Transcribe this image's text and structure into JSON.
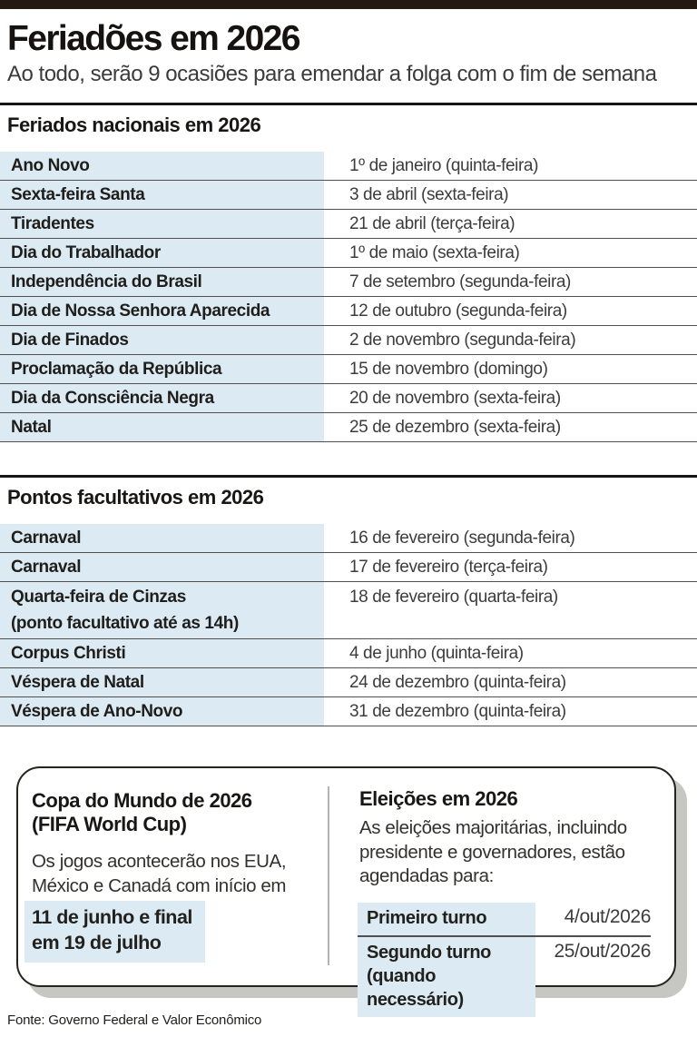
{
  "header": {
    "title": "Feriadões em 2026",
    "subtitle": "Ao todo, serão 9 ocasiões para emendar a folga com o fim de semana"
  },
  "national": {
    "heading": "Feriados nacionais em 2026",
    "rows": [
      {
        "name": "Ano Novo",
        "date": "1º de janeiro (quinta-feira)"
      },
      {
        "name": "Sexta-feira Santa",
        "date": "3 de abril (sexta-feira)"
      },
      {
        "name": "Tiradentes",
        "date": "21 de abril (terça-feira)"
      },
      {
        "name": "Dia do Trabalhador",
        "date": "1º de maio (sexta-feira)"
      },
      {
        "name": "Independência do Brasil",
        "date": "7 de setembro (segunda-feira)"
      },
      {
        "name": "Dia de Nossa Senhora Aparecida",
        "date": "12 de outubro (segunda-feira)"
      },
      {
        "name": "Dia de Finados",
        "date": "2 de novembro (segunda-feira)"
      },
      {
        "name": "Proclamação da República",
        "date": "15 de novembro (domingo)"
      },
      {
        "name": "Dia da Consciência Negra",
        "date": "20 de novembro (sexta-feira)"
      },
      {
        "name": "Natal",
        "date": "25 de dezembro (sexta-feira)"
      }
    ]
  },
  "optional": {
    "heading": "Pontos facultativos em 2026",
    "rows": [
      {
        "name": "Carnaval",
        "note": "",
        "date": "16 de fevereiro (segunda-feira)"
      },
      {
        "name": "Carnaval",
        "note": "",
        "date": "17 de fevereiro (terça-feira)"
      },
      {
        "name": "Quarta-feira de Cinzas",
        "note": "(ponto facultativo até as 14h)",
        "date": "18 de fevereiro (quarta-feira)"
      },
      {
        "name": "Corpus Christi",
        "note": "",
        "date": "4 de junho (quinta-feira)"
      },
      {
        "name": "Véspera de Natal",
        "note": "",
        "date": "24 de dezembro (quinta-feira)"
      },
      {
        "name": "Véspera de Ano-Novo",
        "note": "",
        "date": "31 de dezembro (quinta-feira)"
      }
    ]
  },
  "info_box": {
    "world_cup": {
      "heading_line1": "Copa do Mundo de 2026",
      "heading_line2": "(FIFA World Cup)",
      "body": "Os jogos acontecerão nos EUA, México e Canadá com início em",
      "highlight_line1": "11 de junho e final",
      "highlight_line2": "em 19 de julho"
    },
    "elections": {
      "heading": "Eleições em 2026",
      "body": "As eleições majoritárias, incluindo presidente e governadores, estão agendadas para:",
      "rounds": [
        {
          "label": "Primeiro turno",
          "sublabel": "",
          "date": "4/out/2026"
        },
        {
          "label": "Segundo turno",
          "sublabel": "(quando necessário)",
          "date": "25/out/2026"
        }
      ]
    }
  },
  "footer": {
    "source": "Fonte: Governo Federal e Valor Econômico"
  },
  "colors": {
    "top_bar": "#241a13",
    "highlight_blue": "#dcebf3",
    "rule_dark": "#161616",
    "row_border": "#4f4f4f",
    "box_shadow_gray": "#c6c6c2"
  }
}
